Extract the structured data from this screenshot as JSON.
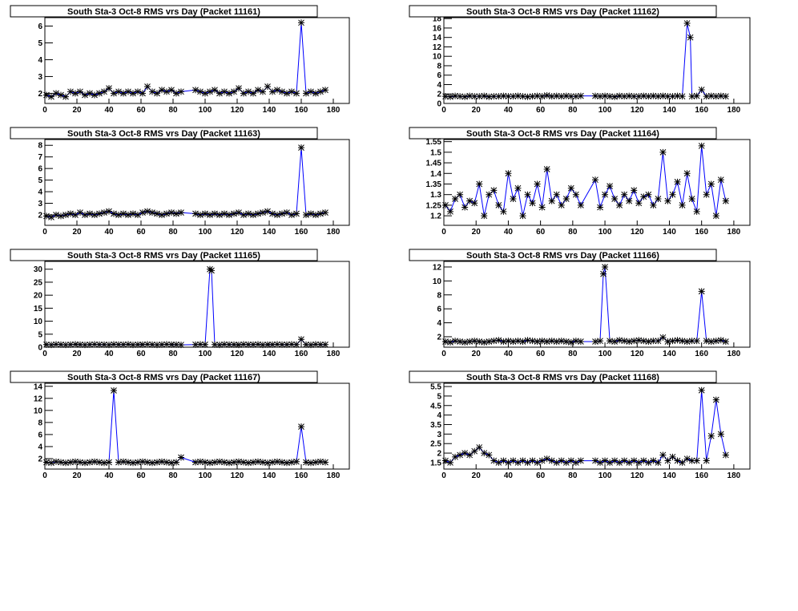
{
  "chart_data": [
    {
      "type": "line",
      "title": "South Sta-3 Oct-8 RMS vrs Day (Packet 11161)",
      "color": "#0000ff",
      "marker_color": "#000000",
      "x": [
        1,
        4,
        7,
        10,
        13,
        16,
        19,
        22,
        25,
        28,
        31,
        34,
        37,
        40,
        43,
        46,
        49,
        52,
        55,
        58,
        61,
        64,
        67,
        70,
        73,
        76,
        79,
        82,
        85,
        94,
        97,
        100,
        103,
        106,
        109,
        112,
        115,
        118,
        121,
        124,
        127,
        130,
        133,
        136,
        139,
        142,
        145,
        148,
        151,
        154,
        157,
        160,
        163,
        166,
        169,
        172,
        175
      ],
      "values": [
        1.9,
        1.8,
        2.0,
        1.9,
        1.8,
        2.1,
        2.0,
        2.1,
        1.9,
        2.0,
        1.9,
        2.0,
        2.1,
        2.3,
        2.0,
        2.1,
        2.0,
        2.1,
        2.0,
        2.1,
        2.0,
        2.4,
        2.1,
        2.0,
        2.2,
        2.1,
        2.2,
        2.0,
        2.1,
        2.2,
        2.1,
        2.0,
        2.1,
        2.2,
        2.0,
        2.1,
        2.0,
        2.1,
        2.3,
        2.0,
        2.1,
        2.0,
        2.2,
        2.1,
        2.4,
        2.1,
        2.2,
        2.1,
        2.0,
        2.1,
        2.0,
        6.2,
        2.0,
        2.1,
        2.0,
        2.1,
        2.2
      ],
      "xlim": [
        0,
        190
      ],
      "xticks": [
        0,
        20,
        40,
        60,
        80,
        100,
        120,
        140,
        160,
        180
      ],
      "ylim": [
        1.4,
        6.5
      ],
      "yticks": [
        2,
        3,
        4,
        5,
        6
      ]
    },
    {
      "type": "line",
      "title": "South Sta-3 Oct-8 RMS vrs Day (Packet 11162)",
      "color": "#0000ff",
      "marker_color": "#000000",
      "x": [
        1,
        4,
        7,
        10,
        13,
        16,
        19,
        22,
        25,
        28,
        31,
        34,
        37,
        40,
        43,
        46,
        49,
        52,
        55,
        58,
        61,
        64,
        67,
        70,
        73,
        76,
        79,
        82,
        85,
        94,
        97,
        100,
        103,
        106,
        109,
        112,
        115,
        118,
        121,
        124,
        127,
        130,
        133,
        136,
        139,
        142,
        145,
        148,
        151,
        153,
        154,
        157,
        160,
        163,
        166,
        169,
        172,
        175
      ],
      "values": [
        1.5,
        1.4,
        1.6,
        1.5,
        1.4,
        1.6,
        1.5,
        1.5,
        1.6,
        1.4,
        1.5,
        1.5,
        1.6,
        1.5,
        1.5,
        1.6,
        1.5,
        1.4,
        1.5,
        1.6,
        1.5,
        1.7,
        1.5,
        1.6,
        1.5,
        1.6,
        1.5,
        1.5,
        1.6,
        1.6,
        1.5,
        1.6,
        1.5,
        1.4,
        1.6,
        1.5,
        1.6,
        1.5,
        1.5,
        1.6,
        1.5,
        1.6,
        1.5,
        1.6,
        1.5,
        1.5,
        1.6,
        1.5,
        17.0,
        14.0,
        1.5,
        1.6,
        2.9,
        1.5,
        1.6,
        1.5,
        1.6,
        1.5
      ],
      "xlim": [
        0,
        190
      ],
      "xticks": [
        0,
        20,
        40,
        60,
        80,
        100,
        120,
        140,
        160,
        180
      ],
      "ylim": [
        0,
        18.2
      ],
      "yticks": [
        0,
        2,
        4,
        6,
        8,
        10,
        12,
        14,
        16,
        18
      ]
    },
    {
      "type": "line",
      "title": "South Sta-3 Oct-8 RMS vrs Day (Packet 11163)",
      "color": "#0000ff",
      "marker_color": "#000000",
      "x": [
        1,
        4,
        7,
        10,
        13,
        16,
        19,
        22,
        25,
        28,
        31,
        34,
        37,
        40,
        43,
        46,
        49,
        52,
        55,
        58,
        61,
        64,
        67,
        70,
        73,
        76,
        79,
        82,
        85,
        94,
        97,
        100,
        103,
        106,
        109,
        112,
        115,
        118,
        121,
        124,
        127,
        130,
        133,
        136,
        139,
        142,
        145,
        148,
        151,
        154,
        157,
        160,
        163,
        166,
        169,
        172,
        175
      ],
      "values": [
        1.9,
        1.8,
        2.0,
        1.9,
        2.0,
        2.1,
        2.0,
        2.2,
        2.0,
        2.1,
        2.0,
        2.1,
        2.2,
        2.3,
        2.1,
        2.0,
        2.1,
        2.0,
        2.1,
        2.0,
        2.2,
        2.3,
        2.2,
        2.1,
        2.0,
        2.1,
        2.2,
        2.1,
        2.2,
        2.1,
        2.0,
        2.1,
        2.0,
        2.1,
        2.0,
        2.1,
        2.0,
        2.1,
        2.2,
        2.0,
        2.1,
        2.0,
        2.1,
        2.2,
        2.3,
        2.1,
        2.0,
        2.1,
        2.2,
        2.0,
        2.1,
        7.8,
        2.0,
        2.1,
        2.0,
        2.1,
        2.2
      ],
      "xlim": [
        0,
        190
      ],
      "xticks": [
        0,
        20,
        40,
        60,
        80,
        100,
        120,
        140,
        160,
        180
      ],
      "ylim": [
        1.1,
        8.5
      ],
      "yticks": [
        2,
        3,
        4,
        5,
        6,
        7,
        8
      ]
    },
    {
      "type": "line",
      "title": "South Sta-3 Oct-8 RMS vrs Day (Packet 11164)",
      "color": "#0000ff",
      "marker_color": "#000000",
      "x": [
        1,
        4,
        7,
        10,
        13,
        16,
        19,
        22,
        25,
        28,
        31,
        34,
        37,
        40,
        43,
        46,
        49,
        52,
        55,
        58,
        61,
        64,
        67,
        70,
        73,
        76,
        79,
        82,
        85,
        94,
        97,
        100,
        103,
        106,
        109,
        112,
        115,
        118,
        121,
        124,
        127,
        130,
        133,
        136,
        139,
        142,
        145,
        148,
        151,
        154,
        157,
        160,
        163,
        166,
        169,
        172,
        175
      ],
      "values": [
        1.25,
        1.22,
        1.28,
        1.3,
        1.24,
        1.27,
        1.26,
        1.35,
        1.2,
        1.3,
        1.32,
        1.25,
        1.22,
        1.4,
        1.28,
        1.33,
        1.2,
        1.3,
        1.26,
        1.35,
        1.24,
        1.42,
        1.27,
        1.3,
        1.25,
        1.28,
        1.33,
        1.3,
        1.25,
        1.37,
        1.24,
        1.3,
        1.34,
        1.28,
        1.25,
        1.3,
        1.27,
        1.32,
        1.26,
        1.29,
        1.3,
        1.25,
        1.28,
        1.5,
        1.27,
        1.3,
        1.36,
        1.25,
        1.4,
        1.28,
        1.22,
        1.53,
        1.3,
        1.35,
        1.2,
        1.37,
        1.27
      ],
      "xlim": [
        0,
        190
      ],
      "xticks": [
        0,
        20,
        40,
        60,
        80,
        100,
        120,
        140,
        160,
        180
      ],
      "ylim": [
        1.155,
        1.56
      ],
      "yticks": [
        1.2,
        1.25,
        1.3,
        1.35,
        1.4,
        1.45,
        1.5,
        1.55
      ]
    },
    {
      "type": "line",
      "title": "South Sta-3 Oct-8 RMS vrs Day (Packet 11165)",
      "color": "#0000ff",
      "marker_color": "#000000",
      "x": [
        1,
        4,
        7,
        10,
        13,
        16,
        19,
        22,
        25,
        28,
        31,
        34,
        37,
        40,
        43,
        46,
        49,
        52,
        55,
        58,
        61,
        64,
        67,
        70,
        73,
        76,
        79,
        82,
        85,
        94,
        97,
        100,
        103,
        104,
        106,
        109,
        112,
        115,
        118,
        121,
        124,
        127,
        130,
        133,
        136,
        139,
        142,
        145,
        148,
        151,
        154,
        157,
        160,
        163,
        166,
        169,
        172,
        175
      ],
      "values": [
        1.0,
        0.9,
        1.1,
        1.0,
        0.9,
        1.0,
        1.1,
        1.0,
        0.9,
        1.0,
        1.1,
        1.0,
        1.0,
        0.9,
        1.1,
        1.0,
        1.0,
        1.1,
        0.9,
        1.0,
        1.0,
        1.1,
        1.0,
        0.9,
        1.0,
        1.1,
        1.0,
        1.0,
        0.9,
        1.0,
        1.1,
        1.0,
        30.0,
        29.5,
        1.0,
        0.9,
        1.1,
        1.0,
        1.0,
        0.9,
        1.1,
        1.0,
        1.0,
        1.1,
        0.9,
        1.0,
        1.0,
        1.1,
        1.0,
        1.0,
        1.1,
        1.0,
        3.0,
        1.0,
        0.9,
        1.1,
        1.0,
        1.0
      ],
      "xlim": [
        0,
        190
      ],
      "xticks": [
        0,
        20,
        40,
        60,
        80,
        100,
        120,
        140,
        160,
        180
      ],
      "ylim": [
        0,
        33
      ],
      "yticks": [
        0,
        5,
        10,
        15,
        20,
        25,
        30
      ]
    },
    {
      "type": "line",
      "title": "South Sta-3 Oct-8 RMS vrs Day (Packet 11166)",
      "color": "#0000ff",
      "marker_color": "#000000",
      "x": [
        1,
        4,
        7,
        10,
        13,
        16,
        19,
        22,
        25,
        28,
        31,
        34,
        37,
        40,
        43,
        46,
        49,
        52,
        55,
        58,
        61,
        64,
        67,
        70,
        73,
        76,
        79,
        82,
        85,
        94,
        97,
        99,
        100,
        103,
        106,
        109,
        112,
        115,
        118,
        121,
        124,
        127,
        130,
        133,
        136,
        139,
        142,
        145,
        148,
        151,
        154,
        157,
        160,
        163,
        166,
        169,
        172,
        175
      ],
      "values": [
        1.3,
        1.2,
        1.4,
        1.3,
        1.2,
        1.3,
        1.4,
        1.3,
        1.2,
        1.3,
        1.4,
        1.5,
        1.3,
        1.4,
        1.3,
        1.4,
        1.3,
        1.5,
        1.4,
        1.3,
        1.4,
        1.3,
        1.4,
        1.3,
        1.4,
        1.3,
        1.2,
        1.4,
        1.3,
        1.3,
        1.4,
        11.0,
        12.0,
        1.4,
        1.3,
        1.5,
        1.4,
        1.3,
        1.4,
        1.5,
        1.4,
        1.3,
        1.4,
        1.4,
        1.9,
        1.3,
        1.4,
        1.5,
        1.4,
        1.3,
        1.4,
        1.4,
        8.5,
        1.4,
        1.3,
        1.4,
        1.5,
        1.3
      ],
      "xlim": [
        0,
        190
      ],
      "xticks": [
        0,
        20,
        40,
        60,
        80,
        100,
        120,
        140,
        160,
        180
      ],
      "ylim": [
        0.5,
        12.8
      ],
      "yticks": [
        2,
        4,
        6,
        8,
        10,
        12
      ]
    },
    {
      "type": "line",
      "title": "South Sta-3 Oct-8 RMS vrs Day (Packet 11167)",
      "color": "#0000ff",
      "marker_color": "#000000",
      "x": [
        1,
        4,
        7,
        10,
        13,
        16,
        19,
        22,
        25,
        28,
        31,
        34,
        37,
        40,
        43,
        46,
        49,
        52,
        55,
        58,
        61,
        64,
        67,
        70,
        73,
        76,
        79,
        82,
        85,
        94,
        97,
        100,
        103,
        106,
        109,
        112,
        115,
        118,
        121,
        124,
        127,
        130,
        133,
        136,
        139,
        142,
        145,
        148,
        151,
        154,
        157,
        160,
        163,
        166,
        169,
        172,
        175
      ],
      "values": [
        1.4,
        1.3,
        1.5,
        1.4,
        1.3,
        1.4,
        1.5,
        1.4,
        1.3,
        1.4,
        1.5,
        1.4,
        1.3,
        1.4,
        13.3,
        1.4,
        1.5,
        1.4,
        1.3,
        1.4,
        1.5,
        1.4,
        1.3,
        1.4,
        1.5,
        1.4,
        1.3,
        1.4,
        2.2,
        1.4,
        1.5,
        1.4,
        1.3,
        1.4,
        1.5,
        1.4,
        1.3,
        1.4,
        1.5,
        1.4,
        1.3,
        1.4,
        1.5,
        1.4,
        1.3,
        1.4,
        1.5,
        1.4,
        1.3,
        1.4,
        1.5,
        7.3,
        1.4,
        1.3,
        1.4,
        1.5,
        1.4
      ],
      "xlim": [
        0,
        190
      ],
      "xticks": [
        0,
        20,
        40,
        60,
        80,
        100,
        120,
        140,
        160,
        180
      ],
      "ylim": [
        0.27,
        14.5
      ],
      "yticks": [
        2,
        4,
        6,
        8,
        10,
        12,
        14
      ]
    },
    {
      "type": "line",
      "title": "South Sta-3 Oct-8 RMS vrs Day (Packet 11168)",
      "color": "#0000ff",
      "marker_color": "#000000",
      "x": [
        1,
        4,
        7,
        10,
        13,
        16,
        19,
        22,
        25,
        28,
        31,
        34,
        37,
        40,
        43,
        46,
        49,
        52,
        55,
        58,
        61,
        64,
        67,
        70,
        73,
        76,
        79,
        82,
        85,
        94,
        97,
        100,
        103,
        106,
        109,
        112,
        115,
        118,
        121,
        124,
        127,
        130,
        133,
        136,
        139,
        142,
        145,
        148,
        151,
        154,
        157,
        160,
        163,
        166,
        169,
        172,
        175
      ],
      "values": [
        1.6,
        1.5,
        1.8,
        1.9,
        2.0,
        1.9,
        2.1,
        2.3,
        2.0,
        1.9,
        1.6,
        1.5,
        1.6,
        1.5,
        1.6,
        1.5,
        1.6,
        1.5,
        1.6,
        1.5,
        1.6,
        1.7,
        1.6,
        1.5,
        1.6,
        1.5,
        1.6,
        1.5,
        1.6,
        1.6,
        1.5,
        1.6,
        1.5,
        1.6,
        1.5,
        1.6,
        1.5,
        1.6,
        1.5,
        1.6,
        1.5,
        1.6,
        1.5,
        1.9,
        1.6,
        1.8,
        1.6,
        1.5,
        1.7,
        1.6,
        1.6,
        5.3,
        1.6,
        2.9,
        4.8,
        3.0,
        1.9
      ],
      "xlim": [
        0,
        190
      ],
      "xticks": [
        0,
        20,
        40,
        60,
        80,
        100,
        120,
        140,
        160,
        180
      ],
      "ylim": [
        1.16,
        5.67
      ],
      "yticks": [
        1.5,
        2,
        2.5,
        3,
        3.5,
        4,
        4.5,
        5,
        5.5
      ]
    }
  ]
}
